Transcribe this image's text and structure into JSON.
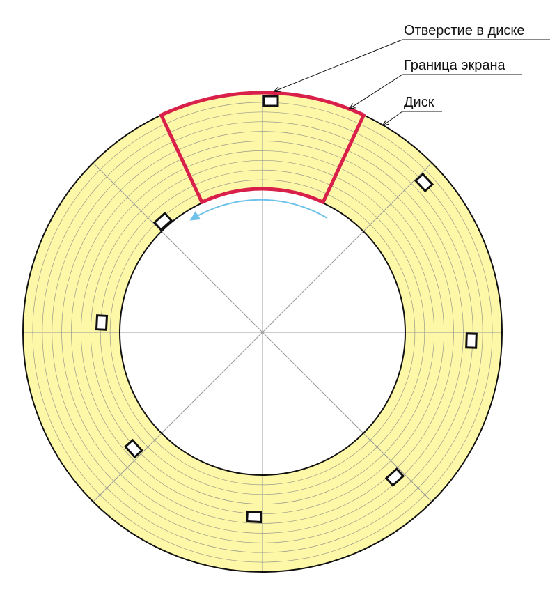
{
  "labels": {
    "hole": "Отверстие в диске",
    "screen_border": "Граница экрана",
    "disk": "Диск"
  }
}
